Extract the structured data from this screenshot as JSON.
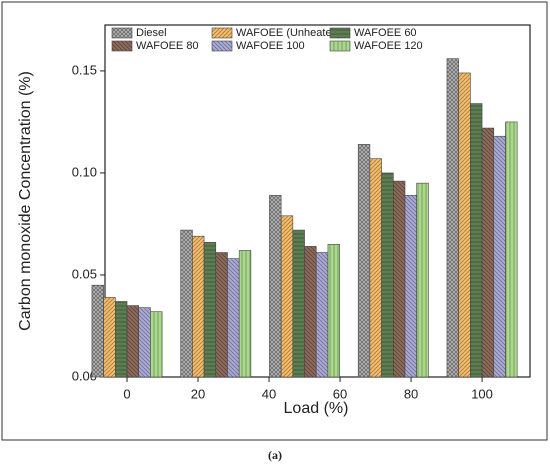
{
  "chart_data": {
    "type": "grouped_bar",
    "y_label": "Carbon monoxide Concentration (%)",
    "x_label": "Load (%)",
    "caption": "(a)",
    "x": [
      0,
      25,
      50,
      75,
      100
    ],
    "xlim": [
      -6.2,
      113.5
    ],
    "xticks": [
      0,
      20,
      40,
      60,
      80,
      100
    ],
    "ylim": [
      0,
      0.1725
    ],
    "yticks": [
      {
        "value": 0,
        "label": "0.00"
      },
      {
        "value": 0.05,
        "label": "0.05"
      },
      {
        "value": 0.1,
        "label": "0.10"
      },
      {
        "value": 0.15,
        "label": "0.15"
      }
    ],
    "series": [
      {
        "name": "Diesel",
        "color": "#b4b4b4",
        "values": [
          0.045,
          0.072,
          0.089,
          0.114,
          0.156
        ]
      },
      {
        "name": "WAFOEE (Unheated)",
        "color": "#f7bd6a",
        "values": [
          0.039,
          0.069,
          0.079,
          0.107,
          0.149
        ]
      },
      {
        "name": "WAFOEE 60",
        "color": "#5d7d52",
        "values": [
          0.037,
          0.066,
          0.072,
          0.1,
          0.134
        ]
      },
      {
        "name": "WAFOEE 80",
        "color": "#8d6b5b",
        "values": [
          0.035,
          0.061,
          0.064,
          0.096,
          0.122
        ]
      },
      {
        "name": "WAFOEE 100",
        "color": "#ababd9",
        "values": [
          0.034,
          0.058,
          0.061,
          0.089,
          0.118
        ]
      },
      {
        "name": "WAFOEE 120",
        "color": "#aad98c",
        "values": [
          0.032,
          0.062,
          0.065,
          0.095,
          0.125
        ]
      }
    ]
  }
}
